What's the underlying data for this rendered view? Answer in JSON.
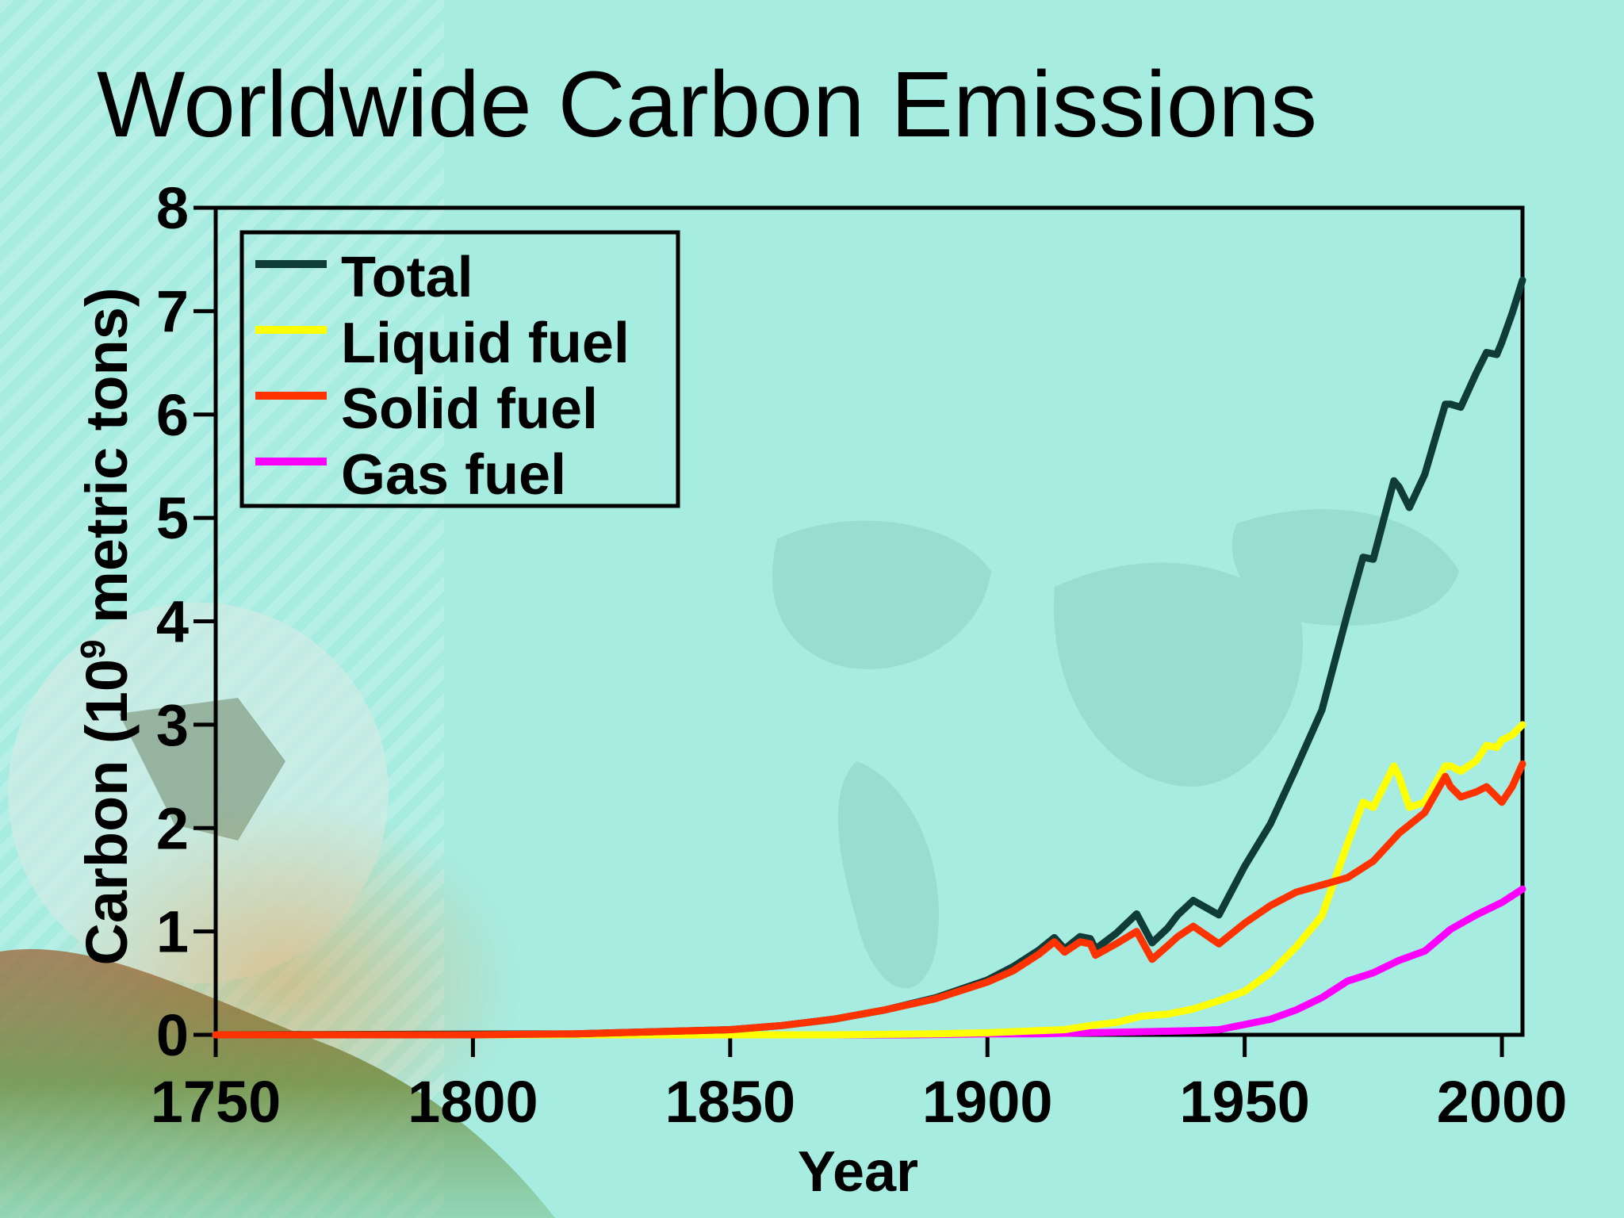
{
  "slide": {
    "title": "Worldwide Carbon Emissions"
  },
  "colors": {
    "background": "#a6ece1",
    "total": "#0f3b38",
    "liquid": "#ffff00",
    "solid": "#ff3300",
    "gas": "#ff00ff"
  },
  "chart_data": {
    "type": "line",
    "title": "",
    "xlabel": "Year",
    "ylabel_base": "Carbon (10",
    "ylabel_sup": "9",
    "ylabel_tail": " metric tons)",
    "xlim": [
      1750,
      2004
    ],
    "ylim": [
      0,
      8
    ],
    "xticks": [
      "1750",
      "1800",
      "1850",
      "1900",
      "1950",
      "2000"
    ],
    "yticks": [
      "0",
      "1",
      "2",
      "3",
      "4",
      "5",
      "6",
      "7",
      "8"
    ],
    "grid": false,
    "legend_position": "top-left",
    "series": [
      {
        "name": "Total",
        "color": "#0f3b38",
        "x": [
          1750,
          1820,
          1850,
          1860,
          1870,
          1880,
          1890,
          1900,
          1905,
          1910,
          1913,
          1915,
          1918,
          1920,
          1921,
          1925,
          1929,
          1932,
          1935,
          1937,
          1940,
          1945,
          1950,
          1955,
          1960,
          1965,
          1970,
          1973,
          1975,
          1979,
          1980,
          1982,
          1985,
          1989,
          1990,
          1992,
          1995,
          1997,
          1999,
          2000,
          2002,
          2004
        ],
        "y": [
          0.0,
          0.01,
          0.05,
          0.09,
          0.15,
          0.24,
          0.36,
          0.53,
          0.66,
          0.82,
          0.94,
          0.83,
          0.95,
          0.93,
          0.83,
          0.98,
          1.17,
          0.89,
          1.03,
          1.16,
          1.3,
          1.16,
          1.63,
          2.04,
          2.58,
          3.14,
          4.08,
          4.62,
          4.6,
          5.36,
          5.3,
          5.1,
          5.42,
          6.1,
          6.1,
          6.07,
          6.4,
          6.6,
          6.58,
          6.7,
          6.98,
          7.3
        ]
      },
      {
        "name": "Liquid fuel",
        "color": "#ffff00",
        "x": [
          1750,
          1870,
          1890,
          1900,
          1910,
          1915,
          1920,
          1925,
          1930,
          1935,
          1940,
          1945,
          1950,
          1955,
          1960,
          1965,
          1970,
          1973,
          1975,
          1979,
          1980,
          1982,
          1985,
          1989,
          1990,
          1992,
          1995,
          1997,
          1999,
          2000,
          2002,
          2004
        ],
        "y": [
          0.0,
          0.0,
          0.01,
          0.02,
          0.04,
          0.05,
          0.09,
          0.12,
          0.18,
          0.2,
          0.25,
          0.33,
          0.42,
          0.6,
          0.85,
          1.15,
          1.85,
          2.25,
          2.2,
          2.6,
          2.5,
          2.2,
          2.25,
          2.6,
          2.6,
          2.55,
          2.65,
          2.8,
          2.78,
          2.85,
          2.9,
          3.0
        ]
      },
      {
        "name": "Solid fuel",
        "color": "#ff3300",
        "x": [
          1750,
          1800,
          1820,
          1850,
          1860,
          1870,
          1880,
          1890,
          1900,
          1905,
          1910,
          1913,
          1915,
          1918,
          1920,
          1921,
          1925,
          1929,
          1932,
          1935,
          1937,
          1940,
          1945,
          1950,
          1955,
          1960,
          1965,
          1970,
          1975,
          1980,
          1985,
          1989,
          1990,
          1992,
          1995,
          1997,
          1999,
          2000,
          2002,
          2004
        ],
        "y": [
          0.0,
          0.0,
          0.01,
          0.05,
          0.09,
          0.15,
          0.24,
          0.35,
          0.51,
          0.62,
          0.78,
          0.9,
          0.8,
          0.9,
          0.88,
          0.77,
          0.88,
          1.0,
          0.73,
          0.86,
          0.95,
          1.05,
          0.88,
          1.08,
          1.25,
          1.38,
          1.45,
          1.52,
          1.68,
          1.95,
          2.15,
          2.5,
          2.4,
          2.3,
          2.35,
          2.4,
          2.3,
          2.25,
          2.4,
          2.62
        ]
      },
      {
        "name": "Gas fuel",
        "color": "#ff00ff",
        "x": [
          1750,
          1885,
          1900,
          1910,
          1920,
          1930,
          1940,
          1945,
          1950,
          1955,
          1960,
          1965,
          1970,
          1975,
          1980,
          1985,
          1990,
          1995,
          2000,
          2004
        ],
        "y": [
          0.0,
          0.0,
          0.01,
          0.01,
          0.02,
          0.03,
          0.04,
          0.05,
          0.1,
          0.15,
          0.24,
          0.36,
          0.52,
          0.6,
          0.72,
          0.81,
          1.02,
          1.16,
          1.28,
          1.41
        ]
      }
    ]
  }
}
